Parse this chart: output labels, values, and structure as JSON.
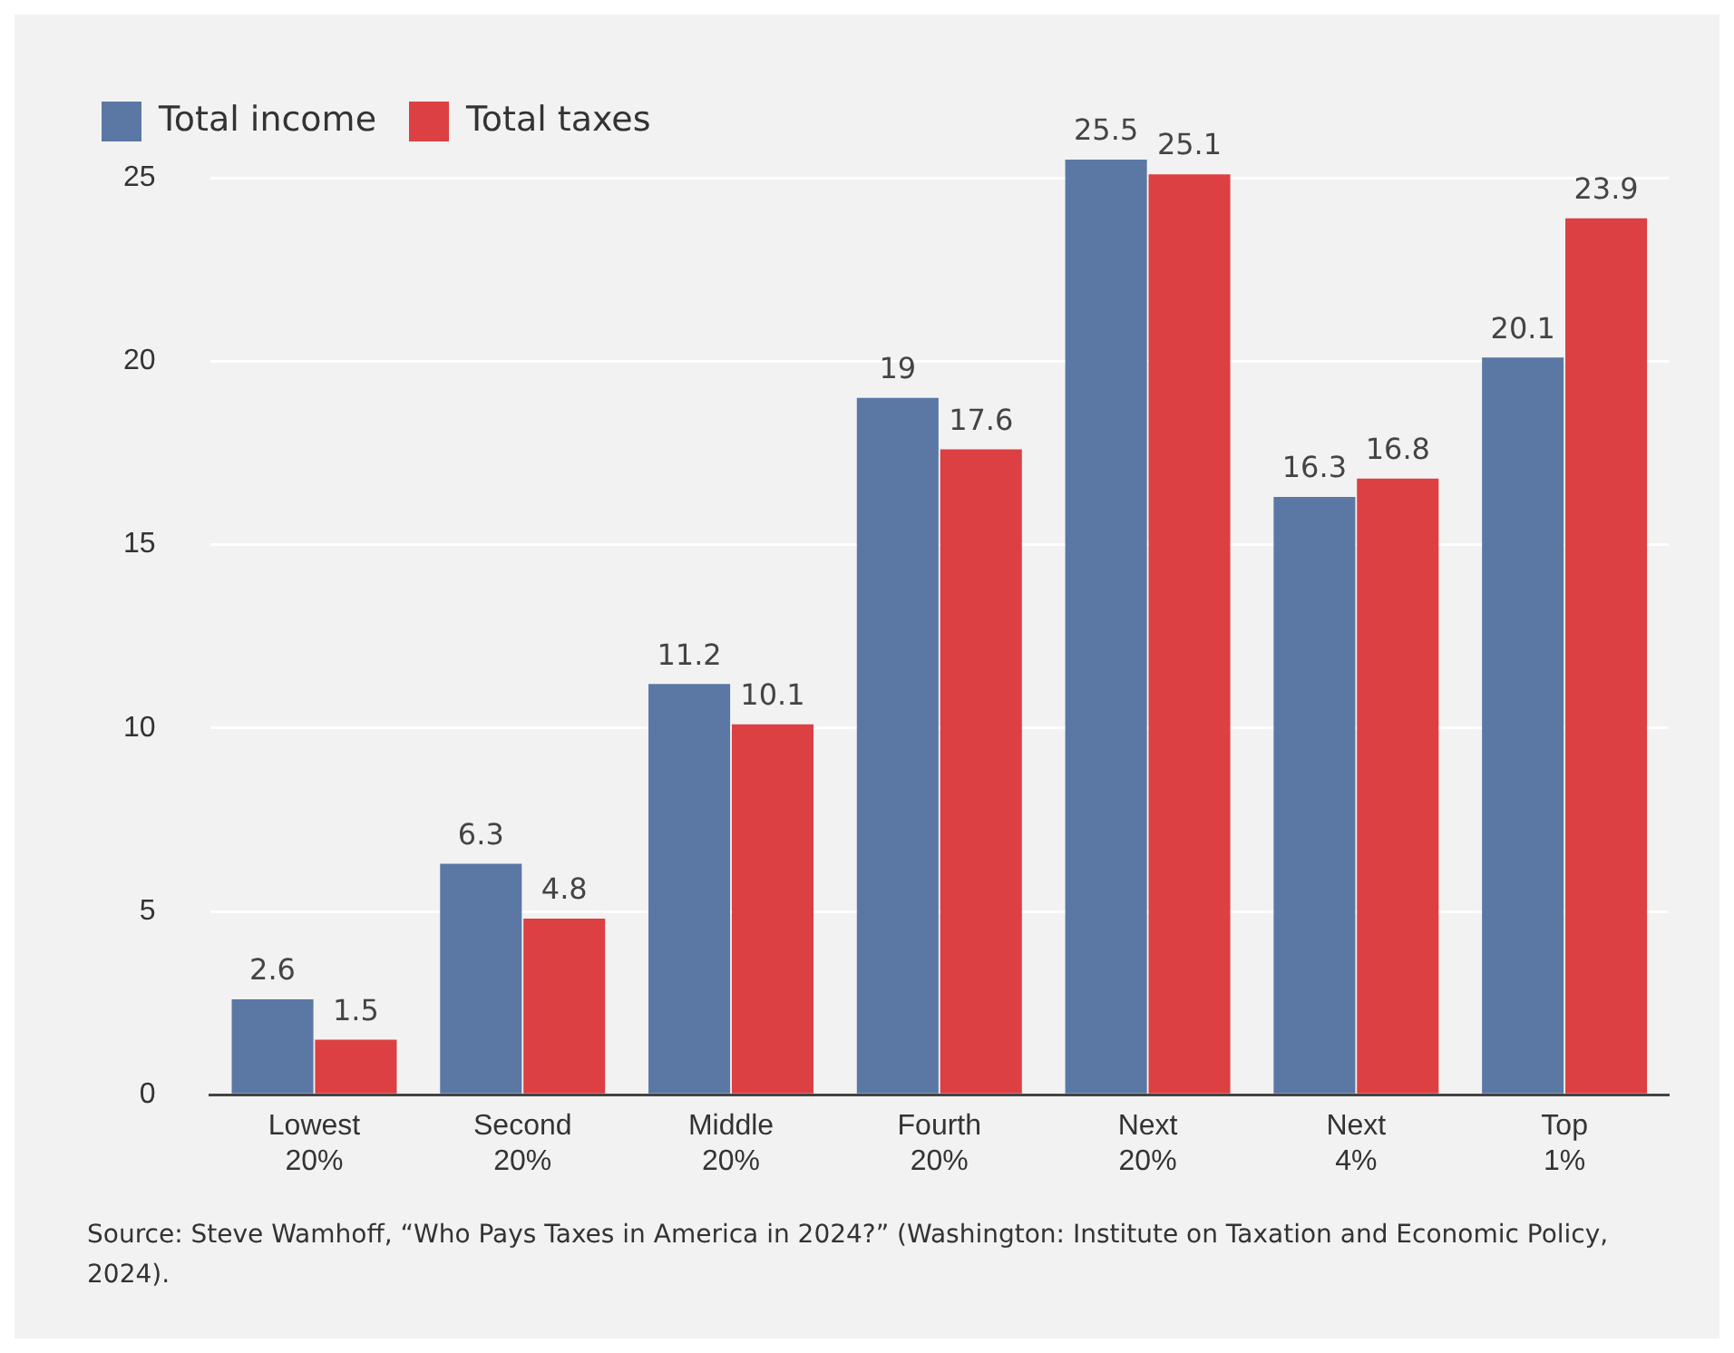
{
  "chart_data": {
    "type": "bar",
    "categories": [
      "Lowest\n20%",
      "Second\n20%",
      "Middle\n20%",
      "Fourth\n20%",
      "Next\n20%",
      "Next\n4%",
      "Top\n1%"
    ],
    "series": [
      {
        "name": "Total income",
        "color": "#5b78a5",
        "values": [
          2.6,
          6.3,
          11.2,
          19,
          25.5,
          16.3,
          20.1
        ]
      },
      {
        "name": "Total taxes",
        "color": "#dc4042",
        "values": [
          1.5,
          4.8,
          10.1,
          17.6,
          25.1,
          16.8,
          23.9
        ]
      }
    ],
    "ylim": [
      0,
      25.5
    ],
    "yticks": [
      0,
      5,
      10,
      15,
      20,
      25
    ],
    "grid": "y",
    "legend": "top left",
    "data_labels": true,
    "annotations": [
      "Source: Steve Wamhoff, “Who Pays Taxes in America in 2024?” (Washington: Institute on Taxation and Economic Policy, 2024)."
    ]
  }
}
